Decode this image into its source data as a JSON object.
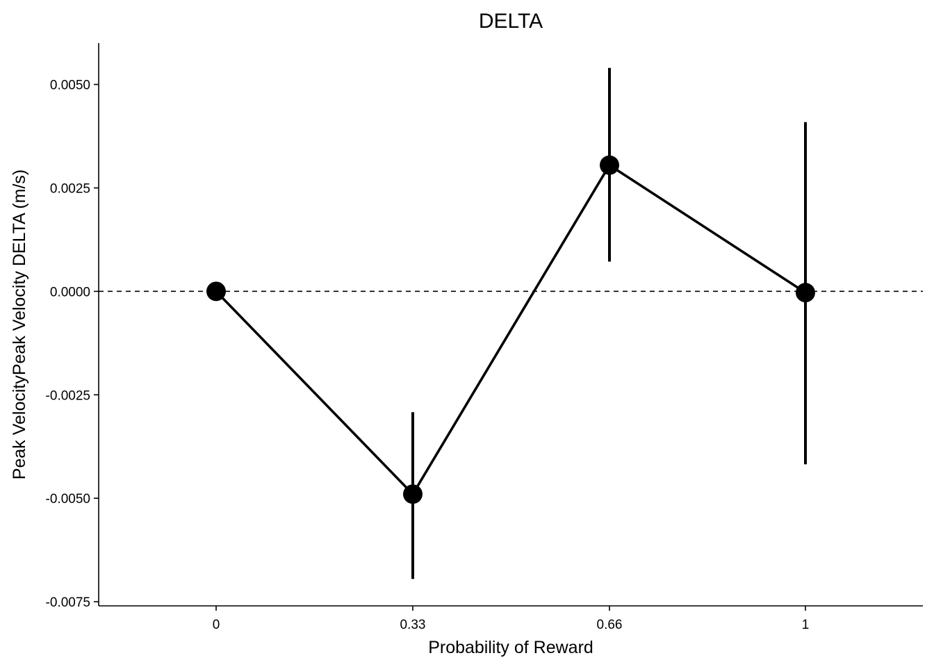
{
  "chart_data": {
    "type": "line",
    "title": "DELTA",
    "xlabel": "Probability of Reward",
    "ylabel": "Peak VelocityPeak Velocity DELTA (m/s)",
    "categories": [
      "0",
      "0.33",
      "0.66",
      "1"
    ],
    "series": [
      {
        "values": [
          0.0,
          -0.0049,
          0.00305,
          -3e-05
        ],
        "error_low": [
          0.0,
          -0.00695,
          0.00072,
          -0.00418
        ],
        "error_high": [
          0.0,
          -0.00292,
          0.0054,
          0.00409
        ]
      }
    ],
    "ylim": [
      -0.0076,
      0.006
    ],
    "yticks": [
      0.005,
      0.0025,
      0.0,
      -0.0025,
      -0.005,
      -0.0075
    ],
    "ytick_labels": [
      "0.0050",
      "0.0025",
      "0.0000",
      "-0.0025",
      "-0.0050",
      "-0.0075"
    ],
    "reference_line": {
      "y": 0.0,
      "style": "dashed"
    },
    "grid": false,
    "legend": "none",
    "colors": {
      "series": "#000000",
      "background": "#ffffff"
    }
  }
}
